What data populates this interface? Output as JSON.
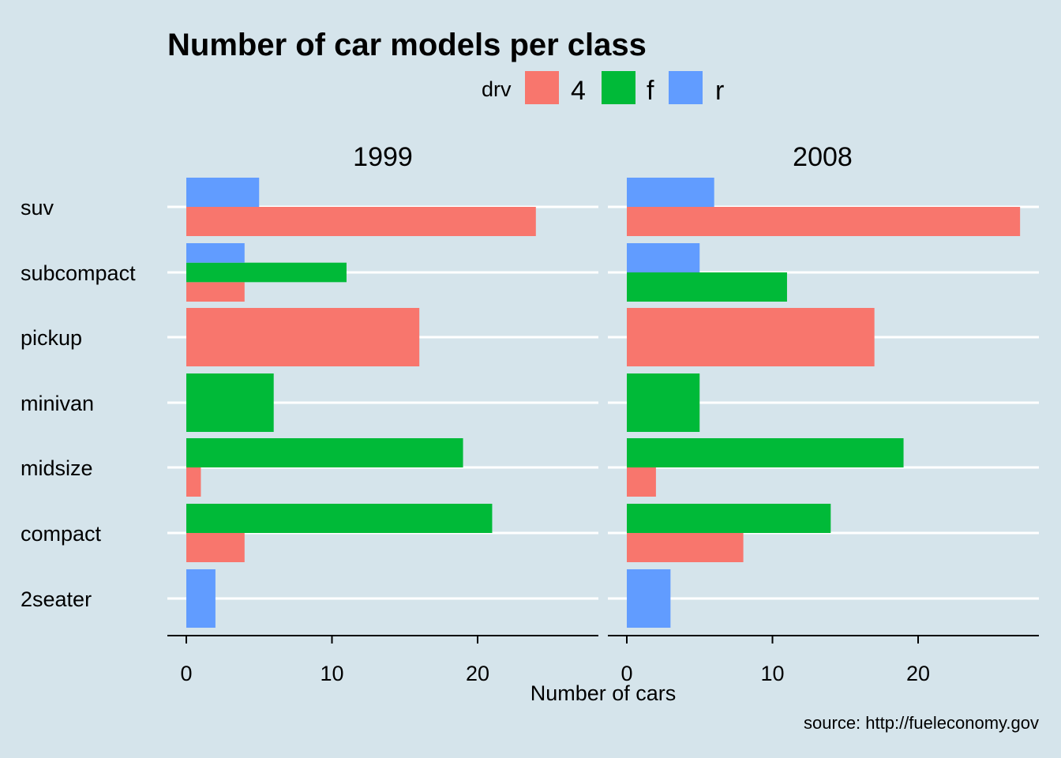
{
  "chart_data": {
    "type": "bar",
    "orientation": "horizontal",
    "title": "Number of car models per class",
    "xlabel": "Number of cars",
    "ylabel": "",
    "caption": "source: http://fueleconomy.gov",
    "legend": {
      "title": "drv",
      "placement": "top",
      "entries": [
        {
          "key": "4",
          "color": "#F8766D"
        },
        {
          "key": "f",
          "color": "#00BA38"
        },
        {
          "key": "r",
          "color": "#619CFF"
        }
      ]
    },
    "categories": [
      "suv",
      "subcompact",
      "pickup",
      "minivan",
      "midsize",
      "compact",
      "2seater"
    ],
    "xlim": [
      0,
      27
    ],
    "xticks": [
      0,
      10,
      20
    ],
    "grid": "horizontal major lines only",
    "background": "#d5e4eb",
    "panels": [
      {
        "label": "1999",
        "bars": [
          {
            "category": "suv",
            "drv": "4",
            "value": 24
          },
          {
            "category": "suv",
            "drv": "r",
            "value": 5
          },
          {
            "category": "subcompact",
            "drv": "4",
            "value": 4
          },
          {
            "category": "subcompact",
            "drv": "f",
            "value": 11
          },
          {
            "category": "subcompact",
            "drv": "r",
            "value": 4
          },
          {
            "category": "pickup",
            "drv": "4",
            "value": 16
          },
          {
            "category": "minivan",
            "drv": "f",
            "value": 6
          },
          {
            "category": "midsize",
            "drv": "4",
            "value": 1
          },
          {
            "category": "midsize",
            "drv": "f",
            "value": 19
          },
          {
            "category": "compact",
            "drv": "4",
            "value": 4
          },
          {
            "category": "compact",
            "drv": "f",
            "value": 21
          },
          {
            "category": "2seater",
            "drv": "r",
            "value": 2
          }
        ]
      },
      {
        "label": "2008",
        "bars": [
          {
            "category": "suv",
            "drv": "4",
            "value": 27
          },
          {
            "category": "suv",
            "drv": "r",
            "value": 6
          },
          {
            "category": "subcompact",
            "drv": "f",
            "value": 11
          },
          {
            "category": "subcompact",
            "drv": "r",
            "value": 5
          },
          {
            "category": "pickup",
            "drv": "4",
            "value": 17
          },
          {
            "category": "minivan",
            "drv": "f",
            "value": 5
          },
          {
            "category": "midsize",
            "drv": "4",
            "value": 2
          },
          {
            "category": "midsize",
            "drv": "f",
            "value": 19
          },
          {
            "category": "compact",
            "drv": "4",
            "value": 8
          },
          {
            "category": "compact",
            "drv": "f",
            "value": 14
          },
          {
            "category": "2seater",
            "drv": "r",
            "value": 3
          }
        ]
      }
    ]
  }
}
